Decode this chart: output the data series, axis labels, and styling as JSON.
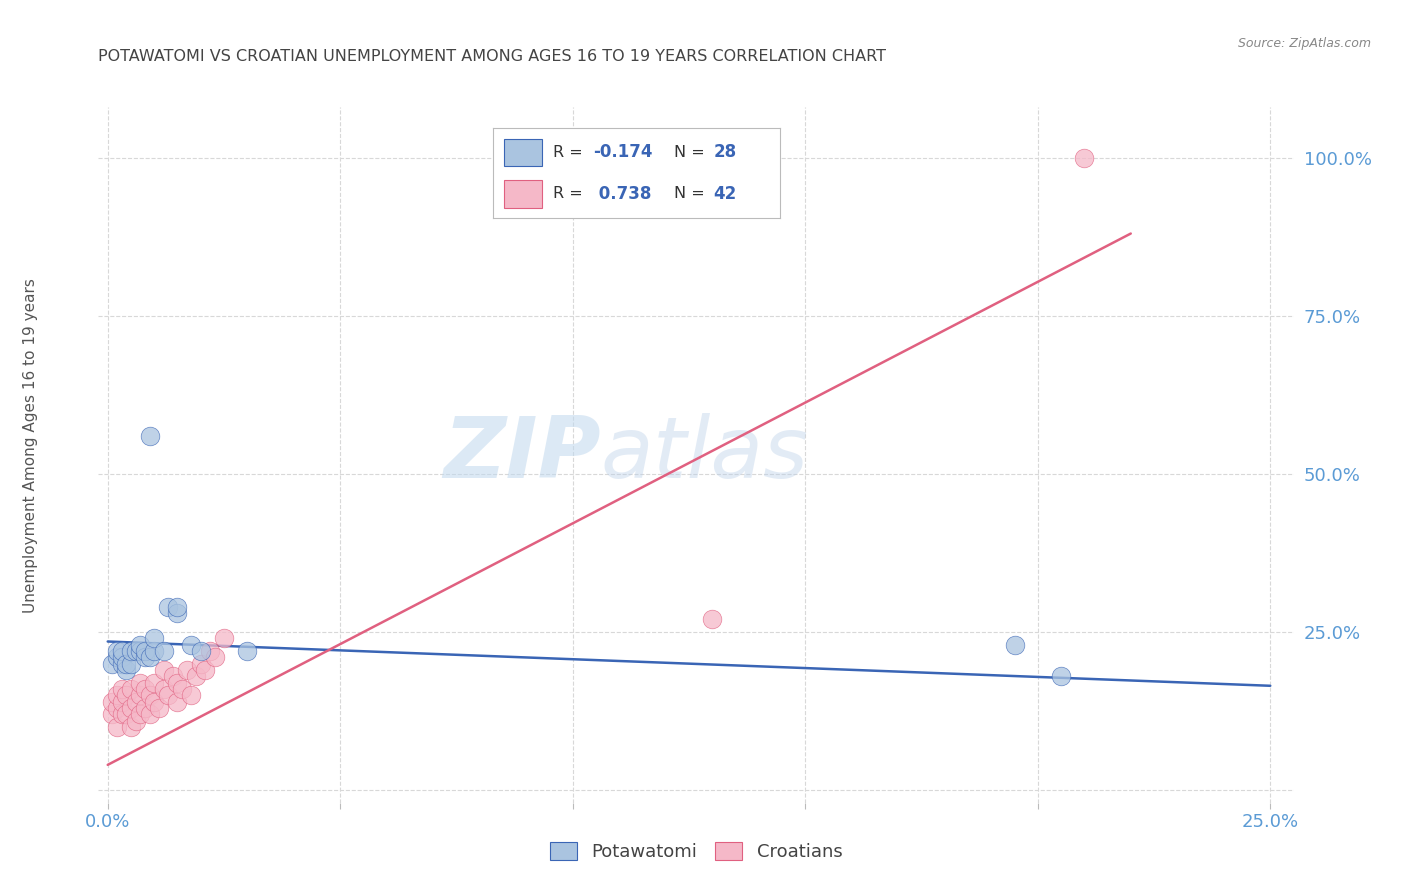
{
  "title": "POTAWATOMI VS CROATIAN UNEMPLOYMENT AMONG AGES 16 TO 19 YEARS CORRELATION CHART",
  "source": "Source: ZipAtlas.com",
  "ylabel": "Unemployment Among Ages 16 to 19 years",
  "xlim": [
    -0.002,
    0.255
  ],
  "ylim": [
    -0.02,
    1.08
  ],
  "xticks": [
    0.0,
    0.05,
    0.1,
    0.15,
    0.2,
    0.25
  ],
  "yticks": [
    0.0,
    0.25,
    0.5,
    0.75,
    1.0
  ],
  "xticklabels": [
    "0.0%",
    "",
    "",
    "",
    "",
    "25.0%"
  ],
  "yticklabels": [
    "",
    "25.0%",
    "50.0%",
    "75.0%",
    "100.0%"
  ],
  "blue_color": "#aac4e0",
  "pink_color": "#f5b8c8",
  "blue_line_color": "#3a65b5",
  "pink_line_color": "#e06080",
  "grid_color": "#d8d8d8",
  "title_color": "#444444",
  "axis_label_color": "#5b9bd5",
  "watermark_zip": "ZIP",
  "watermark_atlas": "atlas",
  "potawatomi_x": [
    0.001,
    0.002,
    0.002,
    0.003,
    0.003,
    0.003,
    0.004,
    0.004,
    0.005,
    0.005,
    0.006,
    0.007,
    0.007,
    0.008,
    0.008,
    0.009,
    0.009,
    0.01,
    0.01,
    0.012,
    0.013,
    0.015,
    0.015,
    0.018,
    0.02,
    0.03,
    0.195,
    0.205
  ],
  "potawatomi_y": [
    0.2,
    0.21,
    0.22,
    0.2,
    0.21,
    0.22,
    0.19,
    0.2,
    0.2,
    0.22,
    0.22,
    0.22,
    0.23,
    0.21,
    0.22,
    0.56,
    0.21,
    0.22,
    0.24,
    0.22,
    0.29,
    0.28,
    0.29,
    0.23,
    0.22,
    0.22,
    0.23,
    0.18
  ],
  "croatian_x": [
    0.001,
    0.001,
    0.002,
    0.002,
    0.002,
    0.003,
    0.003,
    0.003,
    0.004,
    0.004,
    0.005,
    0.005,
    0.005,
    0.006,
    0.006,
    0.007,
    0.007,
    0.007,
    0.008,
    0.008,
    0.009,
    0.009,
    0.01,
    0.01,
    0.011,
    0.012,
    0.012,
    0.013,
    0.014,
    0.015,
    0.015,
    0.016,
    0.017,
    0.018,
    0.019,
    0.02,
    0.021,
    0.022,
    0.023,
    0.025,
    0.13,
    0.21
  ],
  "croatian_y": [
    0.12,
    0.14,
    0.1,
    0.13,
    0.15,
    0.12,
    0.14,
    0.16,
    0.12,
    0.15,
    0.1,
    0.13,
    0.16,
    0.11,
    0.14,
    0.12,
    0.15,
    0.17,
    0.13,
    0.16,
    0.12,
    0.15,
    0.14,
    0.17,
    0.13,
    0.16,
    0.19,
    0.15,
    0.18,
    0.14,
    0.17,
    0.16,
    0.19,
    0.15,
    0.18,
    0.2,
    0.19,
    0.22,
    0.21,
    0.24,
    0.27,
    1.0
  ],
  "blue_trend_x": [
    0.0,
    0.25
  ],
  "blue_trend_y": [
    0.235,
    0.165
  ],
  "pink_trend_x": [
    0.0,
    0.22
  ],
  "pink_trend_y": [
    0.04,
    0.88
  ]
}
